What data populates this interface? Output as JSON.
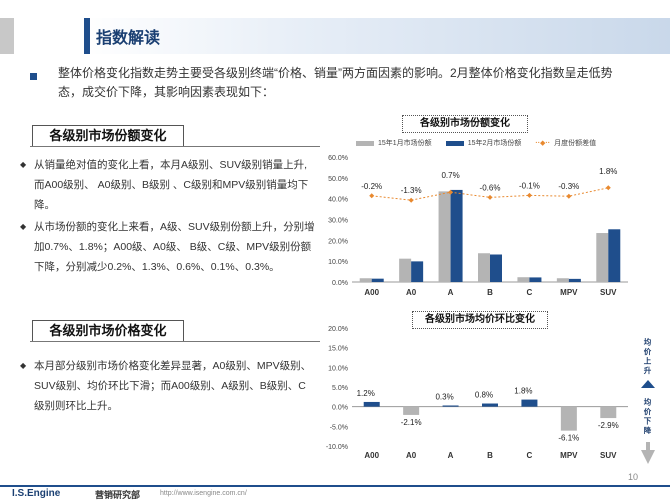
{
  "header": {
    "title": "指数解读"
  },
  "intro": "整体价格变化指数走势主要受各级别终端“价格、销量”两方面因素的影响。2月整体价格变化指数呈走低势态，成交价下降，其影响因素表现如下：",
  "section1": {
    "title": "各级别市场份额变化",
    "bullets": [
      "从销量绝对值的变化上看，本月A级别、SUV级别销量上升,而A00级别、 A0级别、B级别 、C级别和MPV级别销量均下降。",
      "从市场份额的变化上来看，A级、SUV级别份额上升，分别增加0.7%、1.8%；A00级、A0级、 B级、C级、MPV级别份额下降，分别减少0.2%、1.3%、0.6%、0.1%、0.3%。"
    ]
  },
  "section2": {
    "title": "各级别市场价格变化",
    "bullets": [
      "本月部分级别市场价格变化差异显著，A0级别、MPV级别、SUV级别、均价环比下滑；而A00级别、A级别、B级别、C级别则环比上升。"
    ]
  },
  "colors": {
    "accent": "#1f4e8c",
    "gray": "#b4b4b4",
    "orange": "#e8892f"
  },
  "chart_data": [
    {
      "type": "bar",
      "title": "各级别市场份额变化",
      "categories": [
        "A00",
        "A0",
        "A",
        "B",
        "C",
        "MPV",
        "SUV"
      ],
      "series": [
        {
          "name": "15年1月市场份额",
          "values": [
            1.8,
            11.2,
            43.5,
            13.8,
            2.3,
            1.8,
            23.5
          ]
        },
        {
          "name": "15年2月市场份额",
          "values": [
            1.6,
            9.9,
            44.2,
            13.2,
            2.2,
            1.5,
            25.3
          ]
        }
      ],
      "line_series": {
        "name": "月度份额差值",
        "values": [
          -0.2,
          -1.3,
          0.7,
          -0.6,
          -0.1,
          -0.3,
          1.8
        ],
        "labels": [
          "-0.2%",
          "-1.3%",
          "0.7%",
          "-0.6%",
          "-0.1%",
          "-0.3%",
          "1.8%"
        ]
      },
      "yticks": [
        "0.0%",
        "10.0%",
        "20.0%",
        "30.0%",
        "40.0%",
        "50.0%",
        "60.0%"
      ],
      "ylim": [
        0,
        60
      ]
    },
    {
      "type": "bar",
      "title": "各级别市场均价环比变化",
      "categories": [
        "A00",
        "A0",
        "A",
        "B",
        "C",
        "MPV",
        "SUV"
      ],
      "values": [
        1.2,
        -2.1,
        0.3,
        0.8,
        1.8,
        -6.1,
        -2.9
      ],
      "labels": [
        "1.2%",
        "-2.1%",
        "0.3%",
        "0.8%",
        "1.8%",
        "-6.1%",
        "-2.9%"
      ],
      "yticks": [
        "-10.0%",
        "-5.0%",
        "0.0%",
        "5.0%",
        "10.0%",
        "15.0%",
        "20.0%"
      ],
      "ylim": [
        -10,
        20
      ],
      "side_up": "均价上升",
      "side_down": "均价下降"
    }
  ],
  "footer": {
    "brand": "I.S.Engine",
    "dept": "营销研究部",
    "url": "http://www.isengine.com.cn/",
    "page": "10"
  }
}
